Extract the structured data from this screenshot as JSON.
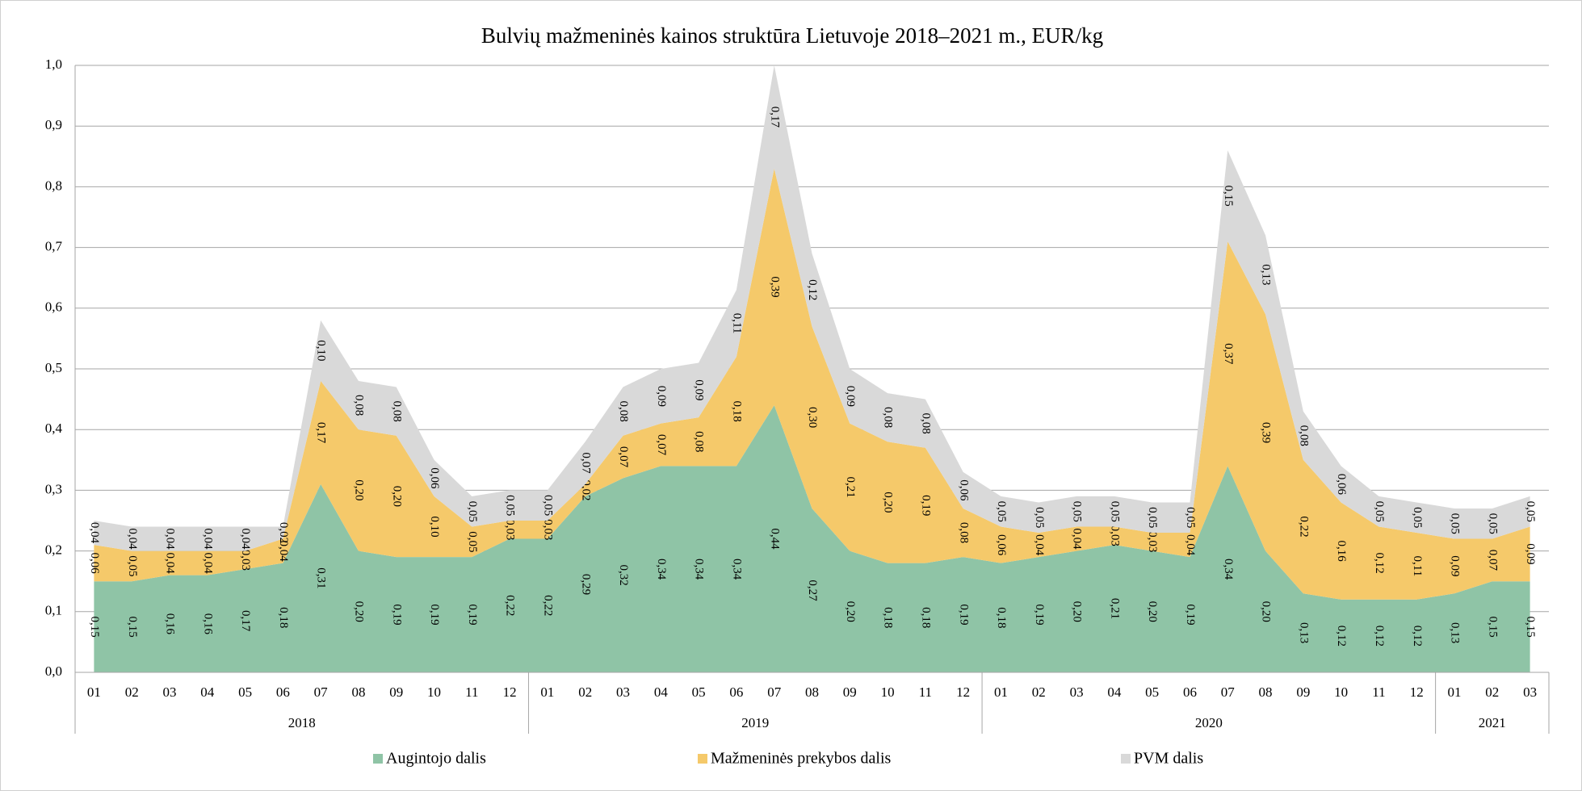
{
  "chart_data": {
    "type": "stacked_area",
    "title": "Bulvių mažmeninės kainos struktūra Lietuvoje 2018–2021 m., EUR/kg",
    "groups": [
      {
        "name": "2018",
        "months": [
          "01",
          "02",
          "03",
          "04",
          "05",
          "06",
          "07",
          "08",
          "09",
          "10",
          "11",
          "12"
        ]
      },
      {
        "name": "2019",
        "months": [
          "01",
          "02",
          "03",
          "04",
          "05",
          "06",
          "07",
          "08",
          "09",
          "10",
          "11",
          "12"
        ]
      },
      {
        "name": "2020",
        "months": [
          "01",
          "02",
          "03",
          "04",
          "05",
          "06",
          "07",
          "08",
          "09",
          "10",
          "11",
          "12"
        ]
      },
      {
        "name": "2021",
        "months": [
          "01",
          "02",
          "03"
        ]
      }
    ],
    "series": [
      {
        "name": "Augintojo dalis",
        "color": "#8fc4a6",
        "values": [
          0.15,
          0.15,
          0.16,
          0.16,
          0.17,
          0.18,
          0.31,
          0.2,
          0.19,
          0.19,
          0.19,
          0.22,
          0.22,
          0.29,
          0.32,
          0.34,
          0.34,
          0.34,
          0.44,
          0.27,
          0.2,
          0.18,
          0.18,
          0.19,
          0.18,
          0.19,
          0.2,
          0.21,
          0.2,
          0.19,
          0.34,
          0.2,
          0.13,
          0.12,
          0.12,
          0.12,
          0.13,
          0.15,
          0.15
        ],
        "value_labels": [
          "0,15",
          "0,15",
          "0,16",
          "0,16",
          "0,17",
          "0,18",
          "0,31",
          "0,20",
          "0,19",
          "0,19",
          "0,19",
          "0,22",
          "0,22",
          "0,29",
          "0,32",
          "0,34",
          "0,34",
          "0,34",
          "0,44",
          "0,27",
          "0,20",
          "0,18",
          "0,18",
          "0,19",
          "0,18",
          "0,19",
          "0,20",
          "0,21",
          "0,20",
          "0,19",
          "0,34",
          "0,20",
          "0,13",
          "0,12",
          "0,12",
          "0,12",
          "0,13",
          "0,15",
          "0,15"
        ]
      },
      {
        "name": "Mažmeninės prekybos dalis",
        "color": "#f5c96a",
        "values": [
          0.06,
          0.05,
          0.04,
          0.04,
          0.03,
          0.04,
          0.17,
          0.2,
          0.2,
          0.1,
          0.05,
          0.03,
          0.03,
          0.02,
          0.07,
          0.07,
          0.08,
          0.18,
          0.39,
          0.3,
          0.21,
          0.2,
          0.19,
          0.08,
          0.06,
          0.04,
          0.04,
          0.03,
          0.03,
          0.04,
          0.37,
          0.39,
          0.22,
          0.16,
          0.12,
          0.11,
          0.09,
          0.07,
          0.09
        ],
        "value_labels": [
          "0,06",
          "0,05",
          "0,04",
          "0,04",
          "0,03",
          "0,04",
          "0,17",
          "0,20",
          "0,20",
          "0,10",
          "0,05",
          "0,03",
          "0,03",
          "0,02",
          "0,07",
          "0,07",
          "0,08",
          "0,18",
          "0,39",
          "0,30",
          "0,21",
          "0,20",
          "0,19",
          "0,08",
          "0,06",
          "0,04",
          "0,04",
          "0,03",
          "0,03",
          "0,04",
          "0,37",
          "0,39",
          "0,22",
          "0,16",
          "0,12",
          "0,11",
          "0,09",
          "0,07",
          "0,09"
        ]
      },
      {
        "name": "PVM dalis",
        "color": "#d9d9d9",
        "values": [
          0.04,
          0.04,
          0.04,
          0.04,
          0.04,
          0.02,
          0.1,
          0.08,
          0.08,
          0.06,
          0.05,
          0.05,
          0.05,
          0.07,
          0.08,
          0.09,
          0.09,
          0.11,
          0.17,
          0.12,
          0.09,
          0.08,
          0.08,
          0.06,
          0.05,
          0.05,
          0.05,
          0.05,
          0.05,
          0.05,
          0.15,
          0.13,
          0.08,
          0.06,
          0.05,
          0.05,
          0.05,
          0.05,
          0.05
        ],
        "value_labels": [
          "0,04",
          "0,04",
          "0,04",
          "0,04",
          "0,04",
          "0,02",
          "0,10",
          "0,08",
          "0,08",
          "0,06",
          "0,05",
          "0,05",
          "0,05",
          "0,07",
          "0,08",
          "0,09",
          "0,09",
          "0,11",
          "0,17",
          "0,12",
          "0,09",
          "0,08",
          "0,08",
          "0,06",
          "0,05",
          "0,05",
          "0,05",
          "0,05",
          "0,05",
          "0,05",
          "0,15",
          "0,13",
          "0,08",
          "0,06",
          "0,05",
          "0,05",
          "0,05",
          "0,05",
          "0,05"
        ]
      }
    ],
    "ylim": [
      0,
      1
    ],
    "yticks": [
      {
        "value": 0,
        "label": "0,0"
      },
      {
        "value": 0.1,
        "label": "0,1"
      },
      {
        "value": 0.2,
        "label": "0,2"
      },
      {
        "value": 0.3,
        "label": "0,3"
      },
      {
        "value": 0.4,
        "label": "0,4"
      },
      {
        "value": 0.5,
        "label": "0,5"
      },
      {
        "value": 0.6,
        "label": "0,6"
      },
      {
        "value": 0.7,
        "label": "0,7"
      },
      {
        "value": 0.8,
        "label": "0,8"
      },
      {
        "value": 0.9,
        "label": "0,9"
      },
      {
        "value": 1,
        "label": "1,0"
      }
    ],
    "grid": true,
    "legend": "bottom"
  }
}
